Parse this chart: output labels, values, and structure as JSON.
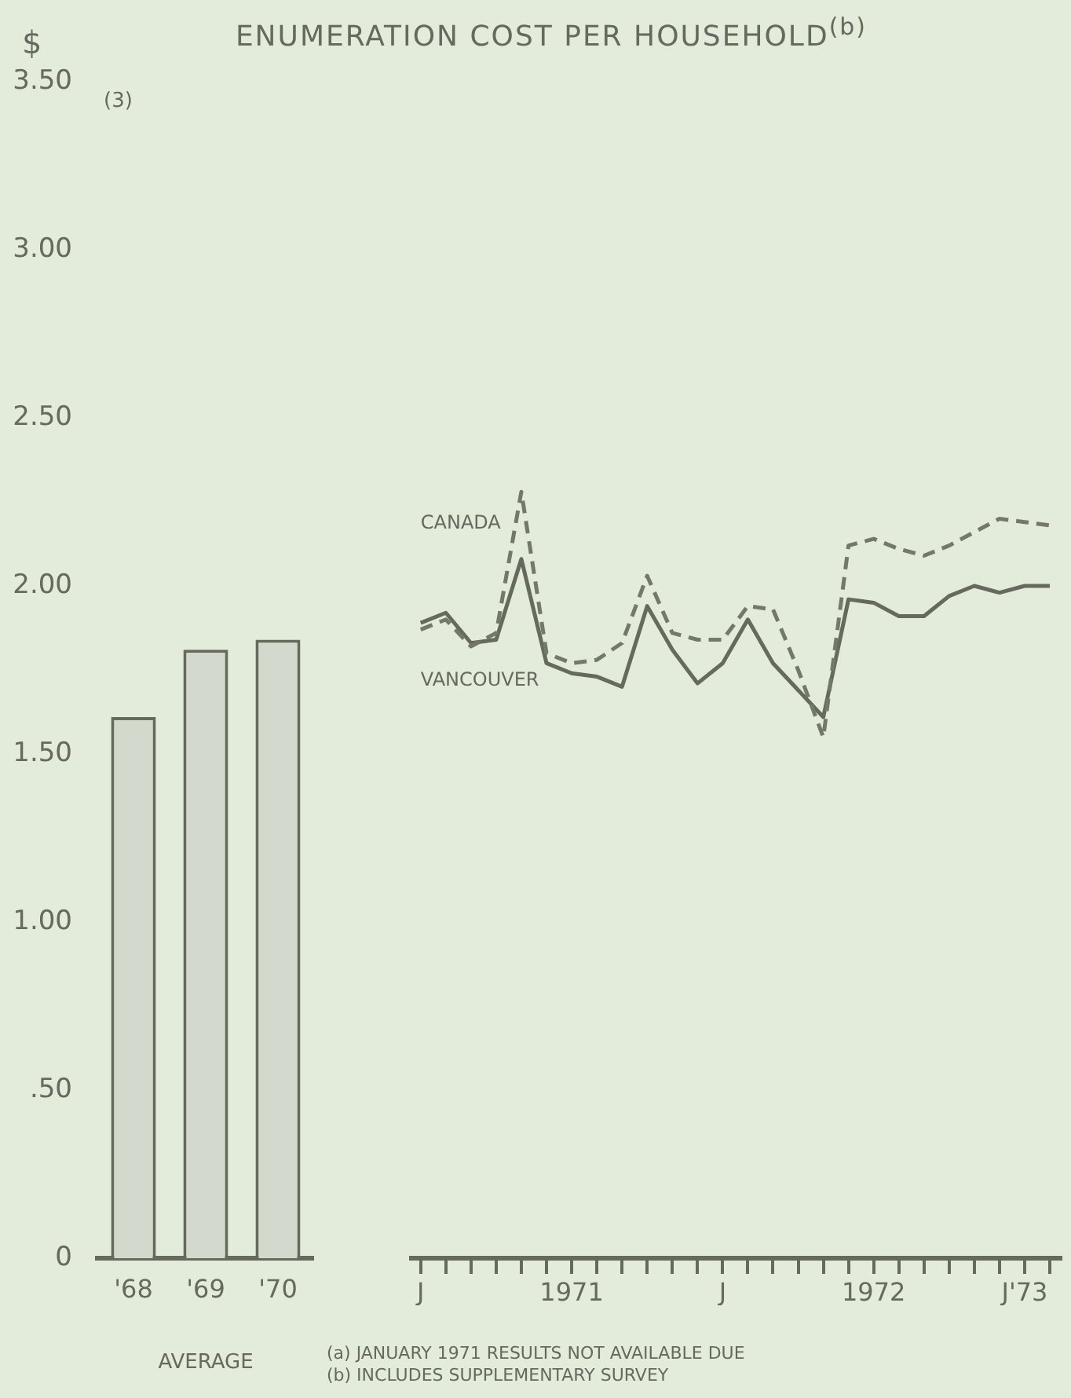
{
  "chart_data": [
    {
      "type": "bar",
      "ylabel": "$",
      "subtitle": "(3)",
      "xlabel": "AVERAGE",
      "categories": [
        "'68",
        "'69",
        "'70"
      ],
      "values": [
        1.61,
        1.81,
        1.84
      ],
      "color": "#d3d9cc",
      "ylim": [
        0,
        3.5
      ],
      "yticks": [
        0,
        {
          "value": 0.5,
          "label": ".50"
        },
        {
          "value": 1,
          "label": "1.00"
        },
        {
          "value": 1.5,
          "label": "1.50"
        },
        {
          "value": 2,
          "label": "2.00"
        },
        {
          "value": 2.5,
          "label": "2.50"
        },
        {
          "value": 3,
          "label": "3.00"
        },
        {
          "value": 3.5,
          "label": "3.50"
        }
      ]
    },
    {
      "type": "line",
      "title": "ENUMERATION COST PER HOUSEHOLD$^{(b)}$",
      "tick_labels": "x",
      "x": [
        "1971-01",
        "1971-02",
        "1971-03",
        "1971-04",
        "1971-05",
        "1971-06",
        "1971-07",
        "1971-08",
        "1971-09",
        "1971-10",
        "1971-11",
        "1971-12",
        "1972-01",
        "1972-02",
        "1972-03",
        "1972-04",
        "1972-05",
        "1972-06",
        "1972-07",
        "1972-08",
        "1972-09",
        "1972-10",
        "1972-11",
        "1972-12",
        "1973-01",
        "1973-02"
      ],
      "series": [
        {
          "name": "CANADA",
          "color": "#737969",
          "line_style": "dashed",
          "values": [
            1.87,
            1.9,
            1.82,
            1.86,
            2.28,
            1.8,
            1.77,
            1.78,
            1.83,
            2.03,
            1.86,
            1.84,
            1.84,
            1.94,
            1.93,
            1.75,
            1.55,
            2.12,
            2.14,
            2.11,
            2.09,
            2.12,
            2.16,
            2.2,
            2.19,
            2.18
          ]
        },
        {
          "name": "VANCOUVER",
          "color": "#646a5c",
          "values": [
            1.89,
            1.92,
            1.83,
            1.84,
            2.08,
            1.77,
            1.74,
            1.73,
            1.7,
            1.94,
            1.81,
            1.71,
            1.77,
            1.9,
            1.77,
            1.69,
            1.61,
            1.96,
            1.95,
            1.91,
            1.91,
            1.97,
            2.0,
            1.98,
            2.0,
            2.0
          ]
        }
      ],
      "xlim": [
        "1970-12-20",
        "1973-02-15"
      ],
      "xticks": [
        {
          "value": "1971-01",
          "label": "J"
        },
        {
          "value": "1971-02",
          "label": null
        },
        {
          "value": "1971-03",
          "label": null
        },
        {
          "value": "1971-04",
          "label": null
        },
        {
          "value": "1971-05",
          "label": null
        },
        {
          "value": "1971-06",
          "label": null
        },
        {
          "value": "1971-07",
          "label": "1971"
        },
        {
          "value": "1971-08",
          "label": null
        },
        {
          "value": "1971-09",
          "label": null
        },
        {
          "value": "1971-10",
          "label": null
        },
        {
          "value": "1971-11",
          "label": null
        },
        {
          "value": "1971-12",
          "label": null
        },
        {
          "value": "1972-01",
          "label": "J"
        },
        {
          "value": "1972-02",
          "label": null
        },
        {
          "value": "1972-03",
          "label": null
        },
        {
          "value": "1972-04",
          "label": null
        },
        {
          "value": "1972-05",
          "label": null
        },
        {
          "value": "1972-06",
          "label": null
        },
        {
          "value": "1972-07",
          "label": "1972"
        },
        {
          "value": "1972-08",
          "label": null
        },
        {
          "value": "1972-09",
          "label": null
        },
        {
          "value": "1972-10",
          "label": null
        },
        {
          "value": "1972-11",
          "label": null
        },
        {
          "value": "1972-12",
          "label": null
        },
        {
          "value": "1973-01",
          "label": "J'73"
        },
        {
          "value": "1973-02",
          "label": null
        }
      ],
      "ylim": [
        0,
        3.5
      ],
      "annotations": [
        "(a) JANUARY 1971 RESULTS NOT AVAILABLE DUE",
        "(b) INCLUDES SUPPLEMENTARY SURVEY"
      ]
    }
  ]
}
